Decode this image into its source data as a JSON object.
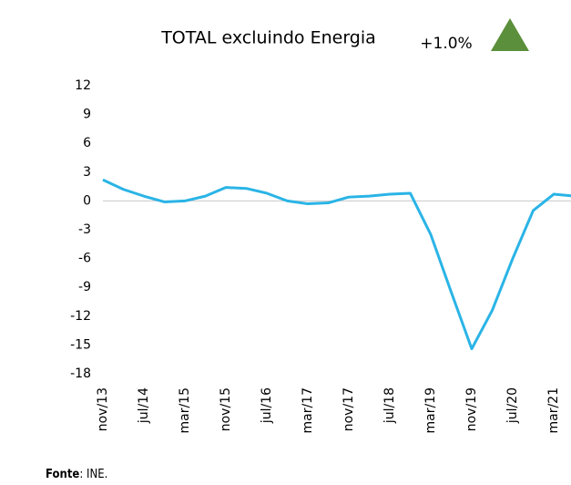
{
  "chart_data": {
    "type": "line",
    "title": "TOTAL excluindo Energia",
    "annotation": "+1.0%",
    "categories": [
      "nov/13",
      null,
      "jul/14",
      null,
      "mar/15",
      null,
      "nov/15",
      null,
      "jul/16",
      null,
      "mar/17",
      null,
      "nov/17",
      null,
      "jul/18",
      null,
      "mar/19",
      null,
      "nov/19",
      null,
      "jul/20",
      null,
      "mar/21",
      null
    ],
    "series": [
      {
        "name": "TOTAL excluindo Energia",
        "color": "#2ab4e6",
        "values": [
          2.2,
          1.2,
          0.5,
          -0.1,
          0.0,
          0.5,
          1.4,
          1.3,
          0.8,
          0.0,
          -0.3,
          -0.2,
          0.4,
          0.5,
          0.7,
          0.8,
          -3.5,
          -9.5,
          -15.4,
          -11.4,
          -6,
          -1,
          0.7,
          0.5
        ]
      }
    ],
    "ylim": [
      -18,
      12
    ],
    "yticks": [
      12,
      9,
      6,
      3,
      0,
      -3,
      -6,
      -9,
      -12,
      -15,
      -18
    ],
    "source": {
      "label": "Fonte",
      "text": ": INE."
    }
  }
}
